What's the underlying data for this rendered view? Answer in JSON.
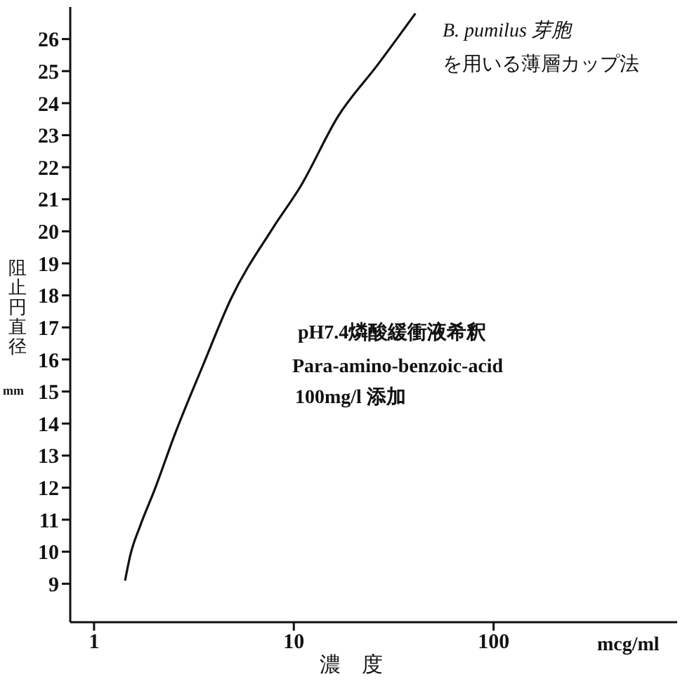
{
  "chart_data": {
    "type": "line",
    "xlabel": "濃　度",
    "ylabel": "阻止円直径 mm",
    "log": "x",
    "x": [
      1.43,
      1.52,
      1.7,
      2.0,
      2.55,
      3.5,
      4.85,
      7.85,
      10.8,
      16.7,
      26.3,
      40.6
    ],
    "series": [
      {
        "color": "#111111",
        "values": [
          9.1,
          9.9,
          10.8,
          11.9,
          13.7,
          15.8,
          17.9,
          20.1,
          21.4,
          23.6,
          25.2,
          26.8
        ]
      }
    ],
    "xlim": [
      0.76,
      830
    ],
    "xticks": [
      1,
      10,
      100
    ],
    "ylim": [
      7.8,
      27
    ],
    "yticks": [
      9,
      10,
      11,
      12,
      13,
      14,
      15,
      16,
      17,
      18,
      19,
      20,
      21,
      22,
      23,
      24,
      25,
      26
    ],
    "grid": false,
    "legend": false,
    "marker": "none",
    "line_style": "solid",
    "annotations": [
      "B. pumilus 芽胞",
      "を用いる薄層カップ法",
      "pH7.4燐酸緩衝液希釈",
      "Para-amino-benzoic-acid",
      "100mg/l 添加",
      "mcg/ml"
    ]
  }
}
